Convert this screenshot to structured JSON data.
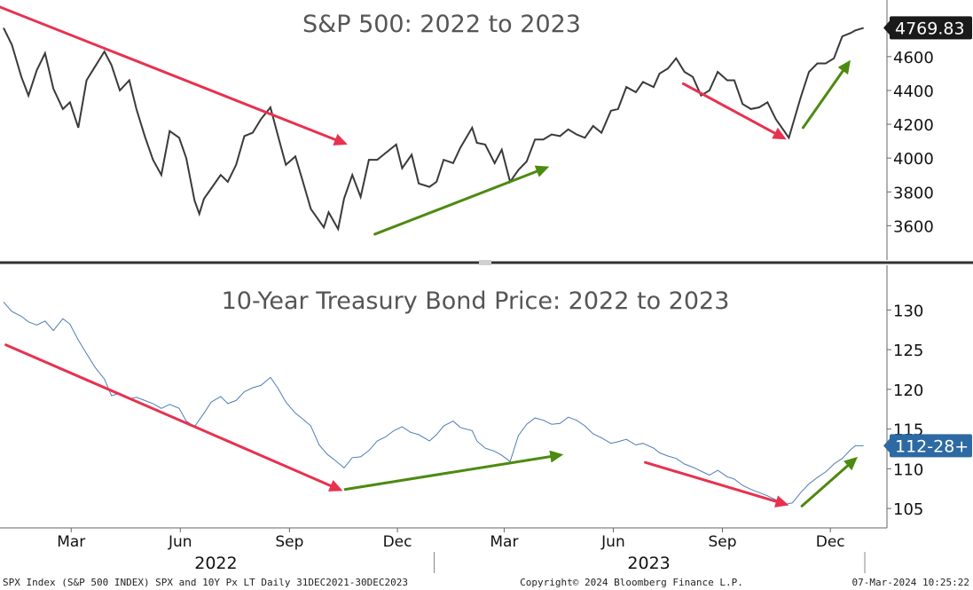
{
  "chart_data": [
    {
      "type": "line",
      "title": "S&P 500: 2022 to 2023",
      "series": [
        {
          "name": "",
          "color": "#3a3a3a"
        }
      ],
      "ylim": [
        3450,
        4830
      ],
      "yticks": [
        3600,
        3800,
        4000,
        4200,
        4400,
        4600
      ],
      "last_value_label": "4769.83",
      "last_value_color": "#1a1a1a",
      "x": [
        "2022-01-03",
        "2022-01-10",
        "2022-01-18",
        "2022-01-24",
        "2022-01-31",
        "2022-02-07",
        "2022-02-14",
        "2022-02-22",
        "2022-02-28",
        "2022-03-07",
        "2022-03-14",
        "2022-03-21",
        "2022-03-29",
        "2022-04-04",
        "2022-04-11",
        "2022-04-19",
        "2022-04-25",
        "2022-05-02",
        "2022-05-09",
        "2022-05-16",
        "2022-05-23",
        "2022-05-31",
        "2022-06-06",
        "2022-06-13",
        "2022-06-17",
        "2022-06-21",
        "2022-06-27",
        "2022-07-05",
        "2022-07-11",
        "2022-07-18",
        "2022-07-25",
        "2022-08-01",
        "2022-08-08",
        "2022-08-16",
        "2022-08-22",
        "2022-08-29",
        "2022-09-06",
        "2022-09-12",
        "2022-09-19",
        "2022-09-30",
        "2022-10-04",
        "2022-10-12",
        "2022-10-17",
        "2022-10-24",
        "2022-10-31",
        "2022-11-07",
        "2022-11-14",
        "2022-11-21",
        "2022-11-30",
        "2022-12-05",
        "2022-12-13",
        "2022-12-19",
        "2022-12-28",
        "2023-01-03",
        "2023-01-09",
        "2023-01-17",
        "2023-01-23",
        "2023-02-02",
        "2023-02-06",
        "2023-02-13",
        "2023-02-21",
        "2023-02-27",
        "2023-03-06",
        "2023-03-13",
        "2023-03-20",
        "2023-03-27",
        "2023-04-03",
        "2023-04-10",
        "2023-04-17",
        "2023-04-24",
        "2023-05-01",
        "2023-05-08",
        "2023-05-15",
        "2023-05-22",
        "2023-05-30",
        "2023-06-05",
        "2023-06-12",
        "2023-06-20",
        "2023-06-26",
        "2023-07-05",
        "2023-07-10",
        "2023-07-17",
        "2023-07-24",
        "2023-07-31",
        "2023-08-07",
        "2023-08-14",
        "2023-08-21",
        "2023-08-28",
        "2023-09-05",
        "2023-09-11",
        "2023-09-18",
        "2023-09-25",
        "2023-10-02",
        "2023-10-09",
        "2023-10-16",
        "2023-10-27",
        "2023-11-01",
        "2023-11-06",
        "2023-11-13",
        "2023-11-20",
        "2023-11-27",
        "2023-12-04",
        "2023-12-11",
        "2023-12-18",
        "2023-12-22",
        "2023-12-29"
      ],
      "values": [
        4770,
        4670,
        4480,
        4370,
        4520,
        4620,
        4410,
        4290,
        4330,
        4180,
        4460,
        4540,
        4630,
        4550,
        4400,
        4460,
        4290,
        4130,
        3990,
        3900,
        4160,
        4120,
        4000,
        3750,
        3670,
        3760,
        3820,
        3900,
        3860,
        3960,
        4130,
        4150,
        4230,
        4300,
        4140,
        3960,
        4010,
        3870,
        3700,
        3590,
        3680,
        3580,
        3760,
        3900,
        3770,
        3990,
        3990,
        4030,
        4080,
        3940,
        4020,
        3850,
        3830,
        3860,
        3990,
        3970,
        4060,
        4180,
        4090,
        4080,
        3970,
        4050,
        3860,
        3930,
        3980,
        4110,
        4110,
        4140,
        4130,
        4170,
        4140,
        4120,
        4190,
        4150,
        4280,
        4290,
        4420,
        4390,
        4450,
        4420,
        4500,
        4530,
        4590,
        4510,
        4480,
        4370,
        4400,
        4510,
        4460,
        4460,
        4320,
        4290,
        4300,
        4330,
        4230,
        4120,
        4240,
        4360,
        4510,
        4560,
        4560,
        4590,
        4720,
        4740,
        4755,
        4770
      ]
    },
    {
      "type": "line",
      "title": "10-Year Treasury Bond Price: 2022 to 2023",
      "series": [
        {
          "name": "",
          "color": "#4f7db3"
        }
      ],
      "ylim": [
        103,
        133.5
      ],
      "yticks": [
        105,
        110,
        115,
        120,
        125,
        130
      ],
      "last_value_label": "112-28+",
      "last_value_color": "#2d6aa3",
      "x": [
        "2022-01-03",
        "2022-01-10",
        "2022-01-18",
        "2022-01-24",
        "2022-01-31",
        "2022-02-07",
        "2022-02-14",
        "2022-02-22",
        "2022-02-28",
        "2022-03-07",
        "2022-03-14",
        "2022-03-21",
        "2022-03-29",
        "2022-04-04",
        "2022-04-11",
        "2022-04-19",
        "2022-04-25",
        "2022-05-02",
        "2022-05-09",
        "2022-05-16",
        "2022-05-23",
        "2022-05-31",
        "2022-06-06",
        "2022-06-13",
        "2022-06-21",
        "2022-06-27",
        "2022-07-05",
        "2022-07-11",
        "2022-07-18",
        "2022-07-25",
        "2022-08-01",
        "2022-08-08",
        "2022-08-16",
        "2022-08-22",
        "2022-08-29",
        "2022-09-06",
        "2022-09-12",
        "2022-09-19",
        "2022-09-26",
        "2022-10-03",
        "2022-10-10",
        "2022-10-17",
        "2022-10-24",
        "2022-10-31",
        "2022-11-07",
        "2022-11-14",
        "2022-11-21",
        "2022-11-28",
        "2022-12-05",
        "2022-12-12",
        "2022-12-19",
        "2022-12-28",
        "2023-01-03",
        "2023-01-09",
        "2023-01-17",
        "2023-01-23",
        "2023-02-02",
        "2023-02-06",
        "2023-02-13",
        "2023-02-21",
        "2023-02-27",
        "2023-03-06",
        "2023-03-13",
        "2023-03-20",
        "2023-03-27",
        "2023-04-03",
        "2023-04-10",
        "2023-04-17",
        "2023-04-24",
        "2023-05-01",
        "2023-05-08",
        "2023-05-15",
        "2023-05-22",
        "2023-05-30",
        "2023-06-05",
        "2023-06-12",
        "2023-06-20",
        "2023-06-26",
        "2023-07-05",
        "2023-07-10",
        "2023-07-17",
        "2023-07-24",
        "2023-07-31",
        "2023-08-07",
        "2023-08-14",
        "2023-08-21",
        "2023-08-28",
        "2023-09-05",
        "2023-09-11",
        "2023-09-18",
        "2023-09-25",
        "2023-10-02",
        "2023-10-09",
        "2023-10-16",
        "2023-10-23",
        "2023-10-30",
        "2023-11-06",
        "2023-11-13",
        "2023-11-20",
        "2023-11-27",
        "2023-12-04",
        "2023-12-11",
        "2023-12-18",
        "2023-12-22",
        "2023-12-29"
      ],
      "values": [
        131,
        129.8,
        129.2,
        128.5,
        128.1,
        128.6,
        127.4,
        128.9,
        128.2,
        126.2,
        124.5,
        122.8,
        121.3,
        119.2,
        119.5,
        118.8,
        119.0,
        118.6,
        118.2,
        117.6,
        118.1,
        117.6,
        116.0,
        115.3,
        117.0,
        118.4,
        119.1,
        118.2,
        118.6,
        119.7,
        120.2,
        120.5,
        121.5,
        120.2,
        118.4,
        117.0,
        116.3,
        115.4,
        113.0,
        111.8,
        111.0,
        110.1,
        111.4,
        111.5,
        112.3,
        113.5,
        114.0,
        114.8,
        115.3,
        114.6,
        114.3,
        113.5,
        114.3,
        115.4,
        116.0,
        115.2,
        114.8,
        113.5,
        112.6,
        112.2,
        111.7,
        110.9,
        114.2,
        115.6,
        116.4,
        116.1,
        115.6,
        115.7,
        116.5,
        116.1,
        115.4,
        114.4,
        113.9,
        113.2,
        113.4,
        113.7,
        113.0,
        113.2,
        112.6,
        112.0,
        111.6,
        111.3,
        110.6,
        110.2,
        109.7,
        109.2,
        109.8,
        109.0,
        108.7,
        107.9,
        107.4,
        107.0,
        106.6,
        106.1,
        105.5,
        105.7,
        107.0,
        108.1,
        108.9,
        109.6,
        110.6,
        111.3,
        112.4,
        112.9,
        112.9
      ]
    }
  ],
  "x_axis": {
    "month_ticks": [
      {
        "date": "2022-03-01",
        "label": "Mar"
      },
      {
        "date": "2022-06-01",
        "label": "Jun"
      },
      {
        "date": "2022-09-01",
        "label": "Sep"
      },
      {
        "date": "2022-12-01",
        "label": "Dec"
      },
      {
        "date": "2023-03-01",
        "label": "Mar"
      },
      {
        "date": "2023-06-01",
        "label": "Jun"
      },
      {
        "date": "2023-09-01",
        "label": "Sep"
      },
      {
        "date": "2023-12-01",
        "label": "Dec"
      }
    ],
    "year_labels": [
      {
        "date": "2022-07-01",
        "label": "2022"
      },
      {
        "date": "2023-07-01",
        "label": "2023"
      }
    ]
  },
  "annotations": {
    "arrow_colors": {
      "down": "#e8314f",
      "up": "#4d8a10"
    },
    "spx_arrows": [
      {
        "dir": "down",
        "from": [
          "2021-12-25",
          4910
        ],
        "to": [
          "2022-10-20",
          4080
        ]
      },
      {
        "dir": "up",
        "from": [
          "2022-11-12",
          3550
        ],
        "to": [
          "2023-04-08",
          3950
        ]
      },
      {
        "dir": "down",
        "from": [
          "2023-07-30",
          4440
        ],
        "to": [
          "2023-10-25",
          4110
        ]
      },
      {
        "dir": "up",
        "from": [
          "2023-11-08",
          4180
        ],
        "to": [
          "2023-12-18",
          4580
        ]
      }
    ],
    "bond_arrows": [
      {
        "dir": "down",
        "from": [
          "2022-01-05",
          125.6
        ],
        "to": [
          "2022-10-16",
          107.2
        ]
      },
      {
        "dir": "up",
        "from": [
          "2022-10-18",
          107.4
        ],
        "to": [
          "2023-04-20",
          111.8
        ]
      },
      {
        "dir": "down",
        "from": [
          "2023-06-28",
          110.8
        ],
        "to": [
          "2023-10-27",
          105.4
        ]
      },
      {
        "dir": "up",
        "from": [
          "2023-11-07",
          105.3
        ],
        "to": [
          "2023-12-24",
          111.5
        ]
      }
    ]
  },
  "footer": {
    "left": "SPX Index (S&P 500 INDEX) SPX and 10Y Px LT  Daily 31DEC2021-30DEC2023",
    "center": "Copyright© 2024 Bloomberg Finance L.P.",
    "right": "07-Mar-2024 10:25:22"
  }
}
